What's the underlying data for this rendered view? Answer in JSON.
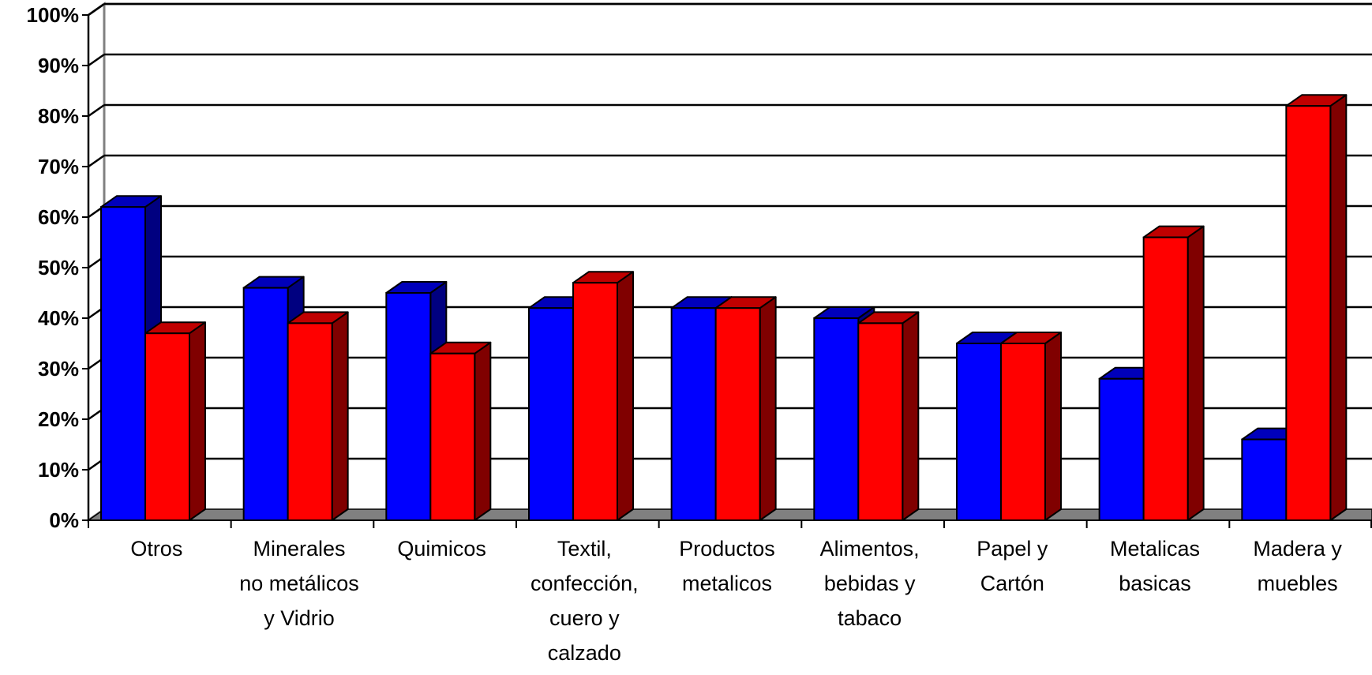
{
  "chart_data": {
    "type": "bar",
    "categories": [
      [
        "Otros"
      ],
      [
        "Minerales",
        "no metálicos",
        "y Vidrio"
      ],
      [
        "Quimicos"
      ],
      [
        "Textil,",
        "confección,",
        "cuero y",
        "calzado"
      ],
      [
        "Productos",
        "metalicos"
      ],
      [
        "Alimentos,",
        "bebidas y",
        "tabaco"
      ],
      [
        "Papel y",
        "Cartón"
      ],
      [
        "Metalicas",
        "basicas"
      ],
      [
        "Madera y",
        "muebles"
      ]
    ],
    "series": [
      {
        "values": [
          62,
          46,
          45,
          42,
          42,
          40,
          35,
          28,
          16
        ],
        "color": "#0000ff",
        "top_color": "#0000bb",
        "side_color": "#000080"
      },
      {
        "values": [
          37,
          39,
          33,
          47,
          42,
          39,
          35,
          56,
          82
        ],
        "color": "#ff0000",
        "top_color": "#c00000",
        "side_color": "#800000"
      }
    ],
    "y_ticks": [
      "0%",
      "10%",
      "20%",
      "30%",
      "40%",
      "50%",
      "60%",
      "70%",
      "80%",
      "90%",
      "100%"
    ],
    "ylim": [
      0,
      100
    ],
    "grid": true,
    "title": "",
    "xlabel": "",
    "ylabel": "",
    "style": "3d-clustered-column",
    "floor_color": "#808080",
    "grid_color": "#000000"
  }
}
